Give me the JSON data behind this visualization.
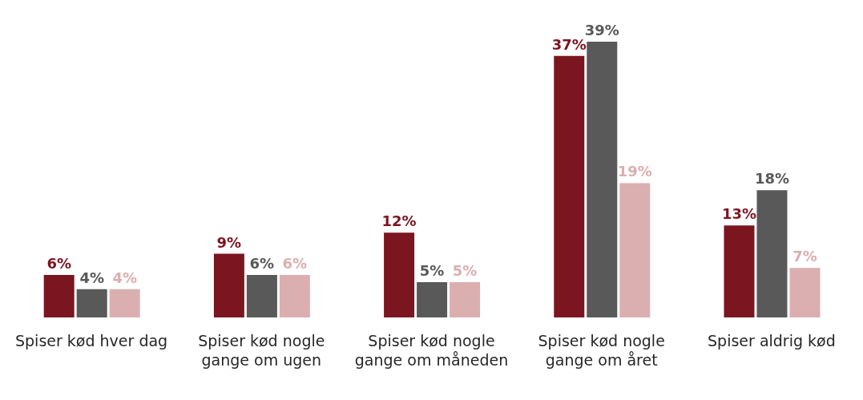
{
  "chart_data": {
    "type": "bar",
    "categories": [
      "Spiser kød hver dag",
      "Spiser kød nogle gange om ugen",
      "Spiser kød nogle gange om måneden",
      "Spiser kød nogle gange om året",
      "Spiser aldrig kød"
    ],
    "series": [
      {
        "color": "#7b1520",
        "values": [
          6,
          9,
          12,
          37,
          13
        ],
        "value_labels": [
          "6%",
          "9%",
          "12%",
          "37%",
          "13%"
        ]
      },
      {
        "color": "#595959",
        "values": [
          4,
          6,
          5,
          39,
          18
        ],
        "value_labels": [
          "4%",
          "6%",
          "5%",
          "39%",
          "18%"
        ]
      },
      {
        "color": "#dbaeb0",
        "values": [
          4,
          6,
          5,
          19,
          7
        ],
        "value_labels": [
          "4%",
          "6%",
          "5%",
          "19%",
          "7%"
        ]
      }
    ],
    "grid": false,
    "legend": false
  }
}
